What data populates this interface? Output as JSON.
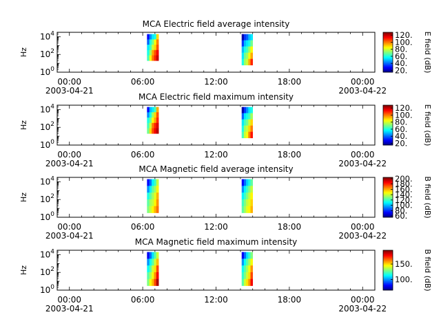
{
  "chart_data": [
    {
      "type": "heatmap",
      "title": "MCA  Electric field average intensity",
      "ylabel": "Hz",
      "colorbar_label": "E field (dB)",
      "colorbar_ticks": [
        "20.",
        "40.",
        "60.",
        "80.",
        "100.",
        "120."
      ],
      "colorbar_range": [
        15,
        128
      ],
      "y_scale": "log",
      "y_ticks": [
        {
          "base": "10",
          "exp": "0"
        },
        {
          "base": "10",
          "exp": "2"
        },
        {
          "base": "10",
          "exp": "4"
        }
      ],
      "x_ticks": [
        "00:00",
        "06:00",
        "12:00",
        "18:00",
        "00:00"
      ],
      "x_dates": [
        "2003-04-21",
        "2003-04-22"
      ],
      "x_range_hours": [
        -1,
        25
      ],
      "y_range_log10": [
        0,
        4.5
      ],
      "segments": [
        {
          "start_hour": 6.35,
          "end_hour": 7.3,
          "f_min_log10": 1.3,
          "f_max_log10": 4.3,
          "levels": [
            [
              30,
              45,
              55,
              60,
              90
            ],
            [
              40,
              60,
              70,
              85,
              100
            ],
            [
              55,
              65,
              80,
              90,
              105
            ],
            [
              60,
              75,
              95,
              105,
              115
            ],
            [
              65,
              85,
              100,
              110,
              120
            ]
          ]
        },
        {
          "start_hour": 14.1,
          "end_hour": 15.0,
          "f_min_log10": 0.8,
          "f_max_log10": 4.3,
          "levels": [
            [
              20,
              35,
              40,
              50,
              55
            ],
            [
              35,
              50,
              55,
              60,
              70
            ],
            [
              50,
              60,
              65,
              75,
              85
            ],
            [
              55,
              70,
              75,
              85,
              95
            ],
            [
              60,
              75,
              80,
              95,
              110
            ]
          ]
        }
      ]
    },
    {
      "type": "heatmap",
      "title": "MCA  Electric field maximum intensity",
      "ylabel": "Hz",
      "colorbar_label": "E field (dB)",
      "colorbar_ticks": [
        "20.",
        "40.",
        "60.",
        "80.",
        "100.",
        "120."
      ],
      "colorbar_range": [
        15,
        128
      ],
      "y_scale": "log",
      "y_ticks": [
        {
          "base": "10",
          "exp": "0"
        },
        {
          "base": "10",
          "exp": "2"
        },
        {
          "base": "10",
          "exp": "4"
        }
      ],
      "x_ticks": [
        "00:00",
        "06:00",
        "12:00",
        "18:00",
        "00:00"
      ],
      "x_dates": [
        "2003-04-21",
        "2003-04-22"
      ],
      "x_range_hours": [
        -1,
        25
      ],
      "y_range_log10": [
        0,
        4.5
      ],
      "segments": [
        {
          "start_hour": 6.35,
          "end_hour": 7.3,
          "f_min_log10": 1.3,
          "f_max_log10": 4.3,
          "levels": [
            [
              30,
              50,
              55,
              65,
              95
            ],
            [
              45,
              60,
              75,
              90,
              105
            ],
            [
              60,
              70,
              85,
              95,
              110
            ],
            [
              65,
              80,
              100,
              110,
              118
            ],
            [
              70,
              90,
              105,
              115,
              122
            ]
          ]
        },
        {
          "start_hour": 14.1,
          "end_hour": 15.0,
          "f_min_log10": 0.8,
          "f_max_log10": 4.3,
          "levels": [
            [
              20,
              35,
              45,
              55,
              60
            ],
            [
              40,
              55,
              60,
              65,
              75
            ],
            [
              55,
              65,
              70,
              80,
              90
            ],
            [
              60,
              75,
              80,
              90,
              100
            ],
            [
              65,
              80,
              85,
              100,
              112
            ]
          ]
        }
      ]
    },
    {
      "type": "heatmap",
      "title": "MCA  Magnetic field average intensity",
      "ylabel": "Hz",
      "colorbar_label": "B field (dB)",
      "colorbar_ticks": [
        "60.",
        "80.",
        "100.",
        "120.",
        "140.",
        "160.",
        "180.",
        "200."
      ],
      "colorbar_range": [
        55,
        205
      ],
      "y_scale": "log",
      "y_ticks": [
        {
          "base": "10",
          "exp": "0"
        },
        {
          "base": "10",
          "exp": "2"
        },
        {
          "base": "10",
          "exp": "4"
        }
      ],
      "x_ticks": [
        "00:00",
        "06:00",
        "12:00",
        "18:00",
        "00:00"
      ],
      "x_dates": [
        "2003-04-21",
        "2003-04-22"
      ],
      "x_range_hours": [
        -1,
        25
      ],
      "y_range_log10": [
        0,
        4.5
      ],
      "segments": [
        {
          "start_hour": 6.35,
          "end_hour": 7.3,
          "f_min_log10": 0.5,
          "f_max_log10": 4.3,
          "levels": [
            [
              75,
              90,
              110,
              120,
              140
            ],
            [
              95,
              110,
              125,
              135,
              150
            ],
            [
              115,
              125,
              135,
              145,
              160
            ],
            [
              125,
              135,
              140,
              150,
              165
            ],
            [
              130,
              140,
              150,
              160,
              170
            ]
          ]
        },
        {
          "start_hour": 14.1,
          "end_hour": 15.0,
          "f_min_log10": 0.5,
          "f_max_log10": 4.3,
          "levels": [
            [
              75,
              90,
              105,
              115,
              125
            ],
            [
              95,
              110,
              120,
              130,
              140
            ],
            [
              110,
              120,
              130,
              140,
              150
            ],
            [
              120,
              130,
              140,
              145,
              155
            ],
            [
              125,
              135,
              145,
              150,
              160
            ]
          ]
        }
      ]
    },
    {
      "type": "heatmap",
      "title": "MCA  Magnetic field maximum intensity",
      "ylabel": "Hz",
      "colorbar_label": "B field (dB)",
      "colorbar_ticks": [
        "100.",
        "150."
      ],
      "colorbar_range": [
        65,
        195
      ],
      "y_scale": "log",
      "y_ticks": [
        {
          "base": "10",
          "exp": "0"
        },
        {
          "base": "10",
          "exp": "2"
        },
        {
          "base": "10",
          "exp": "4"
        }
      ],
      "x_ticks": [
        "00:00",
        "06:00",
        "12:00",
        "18:00",
        "00:00"
      ],
      "x_dates": [
        "2003-04-21",
        "2003-04-22"
      ],
      "x_range_hours": [
        -1,
        25
      ],
      "y_range_log10": [
        0,
        4.5
      ],
      "segments": [
        {
          "start_hour": 6.35,
          "end_hour": 7.3,
          "f_min_log10": 0.5,
          "f_max_log10": 4.3,
          "levels": [
            [
              80,
              95,
              110,
              125,
              140
            ],
            [
              100,
              115,
              125,
              140,
              155
            ],
            [
              115,
              125,
              140,
              150,
              170
            ],
            [
              125,
              135,
              145,
              160,
              180
            ],
            [
              130,
              145,
              155,
              170,
              190
            ]
          ]
        },
        {
          "start_hour": 14.1,
          "end_hour": 15.0,
          "f_min_log10": 0.5,
          "f_max_log10": 4.3,
          "levels": [
            [
              80,
              95,
              110,
              120,
              130
            ],
            [
              100,
              115,
              125,
              135,
              145
            ],
            [
              115,
              125,
              135,
              145,
              160
            ],
            [
              120,
              130,
              140,
              150,
              170
            ],
            [
              125,
              140,
              150,
              160,
              180
            ]
          ]
        }
      ]
    }
  ]
}
